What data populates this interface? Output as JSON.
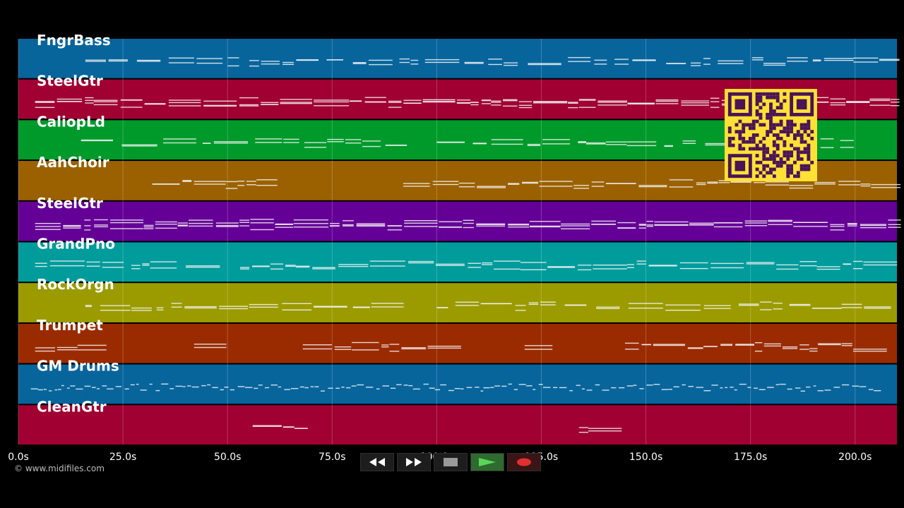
{
  "track_colors": [
    "#07659c",
    "#a00032",
    "#009a2b",
    "#9b6100",
    "#640096",
    "#009b9b",
    "#9b9b00",
    "#9a2b00",
    "#07659c",
    "#a00032"
  ],
  "note_color": "#f4f4f4",
  "timeline": {
    "max_seconds": 210,
    "ticks": [
      "0.0s",
      "25.0s",
      "50.0s",
      "75.0s",
      "100.0s",
      "125.0s",
      "150.0s",
      "175.0s",
      "200.0s"
    ]
  },
  "tracks": [
    {
      "name": "FngrBass"
    },
    {
      "name": "SteelGtr"
    },
    {
      "name": "CaliopLd"
    },
    {
      "name": "AahChoir"
    },
    {
      "name": "SteelGtr"
    },
    {
      "name": "GrandPno"
    },
    {
      "name": "RockOrgn"
    },
    {
      "name": "Trumpet"
    },
    {
      "name": "GM Drums"
    },
    {
      "name": "CleanGtr"
    }
  ],
  "copyright": "© www.midifiles.com",
  "controls": [
    {
      "name": "rewind-button",
      "icon": "rewind-icon"
    },
    {
      "name": "fast-forward-button",
      "icon": "fast-forward-icon"
    },
    {
      "name": "stop-button",
      "icon": "stop-icon"
    },
    {
      "name": "play-button",
      "icon": "play-icon"
    },
    {
      "name": "record-button",
      "icon": "record-icon"
    }
  ],
  "qr_colors": {
    "fg": "#4a1457",
    "bg": "#ffe135"
  }
}
